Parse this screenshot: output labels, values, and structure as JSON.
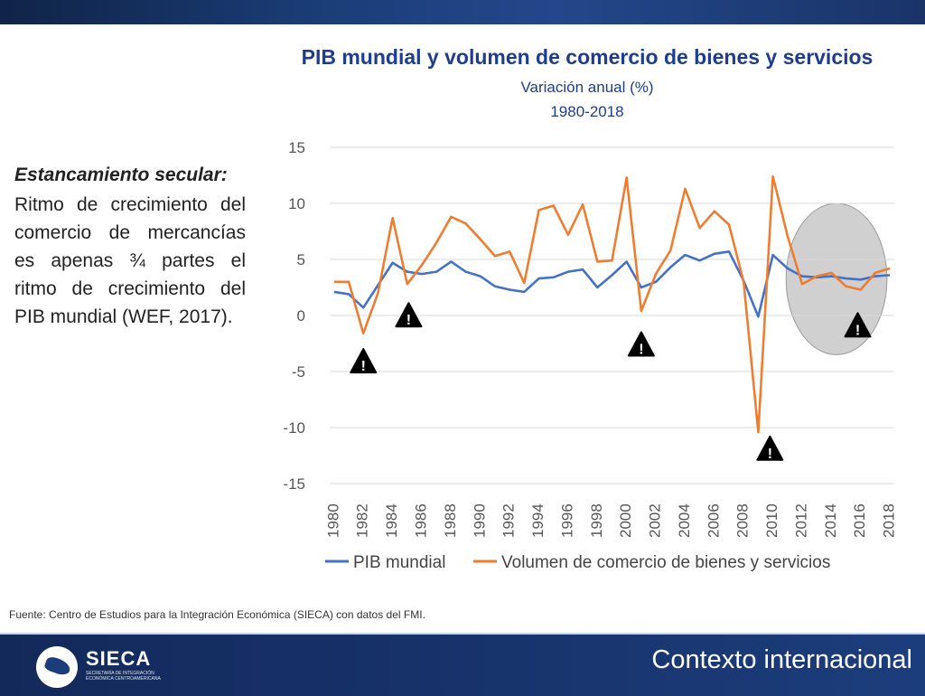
{
  "header": {
    "title": "PIB mundial y volumen de comercio de bienes y servicios",
    "subtitle": "Variación anual (%)",
    "years": "1980-2018"
  },
  "sidebar": {
    "heading": "Estancamiento secular:",
    "text": "Ritmo de crecimiento del comercio de mercancías es apenas ¾ partes el ritmo de crecimiento del PIB mundial (WEF, 2017)."
  },
  "source": "Fuente: Centro de Estudios para la Integración Económica (SIECA) con datos del FMI.",
  "footer": {
    "logo_name": "SIECA",
    "logo_sub": "SECRETARÍA DE INTEGRACIÓN ECONÓMICA CENTROAMERICANA",
    "title": "Contexto internacional"
  },
  "colors": {
    "gdp": "#4472c4",
    "trade": "#ed7d31",
    "title": "#1f3d8c"
  },
  "chart_data": {
    "type": "line",
    "title": "PIB mundial y volumen de comercio de bienes y servicios",
    "subtitle": "Variación anual (%) 1980-2018",
    "xlabel": "",
    "ylabel": "",
    "ylim": [
      -15,
      15
    ],
    "yticks": [
      "15",
      "10",
      "5",
      "0",
      "-5",
      "-10",
      "-15"
    ],
    "x": [
      1980,
      1981,
      1982,
      1983,
      1984,
      1985,
      1986,
      1987,
      1988,
      1989,
      1990,
      1991,
      1992,
      1993,
      1994,
      1995,
      1996,
      1997,
      1998,
      1999,
      2000,
      2001,
      2002,
      2003,
      2004,
      2005,
      2006,
      2007,
      2008,
      2009,
      2010,
      2011,
      2012,
      2013,
      2014,
      2015,
      2016,
      2017,
      2018
    ],
    "xtick_labels": [
      "1980",
      "1982",
      "1984",
      "1986",
      "1988",
      "1990",
      "1992",
      "1994",
      "1996",
      "1998",
      "2000",
      "2002",
      "2004",
      "2006",
      "2008",
      "2010",
      "2012",
      "2014",
      "2016",
      "2018"
    ],
    "legend_position": "bottom",
    "series": [
      {
        "name": "PIB mundial",
        "values": [
          2.1,
          1.9,
          0.7,
          2.7,
          4.7,
          3.9,
          3.7,
          3.9,
          4.8,
          3.9,
          3.5,
          2.6,
          2.3,
          2.1,
          3.3,
          3.4,
          3.9,
          4.1,
          2.5,
          3.6,
          4.8,
          2.5,
          3.0,
          4.3,
          5.4,
          4.9,
          5.5,
          5.7,
          3.1,
          -0.1,
          5.4,
          4.2,
          3.5,
          3.4,
          3.5,
          3.3,
          3.2,
          3.5,
          3.6
        ]
      },
      {
        "name": "Volumen de comercio de bienes y servicios",
        "values": [
          3.0,
          3.0,
          -1.6,
          2.0,
          8.7,
          2.8,
          4.5,
          6.5,
          8.8,
          8.2,
          6.8,
          5.3,
          5.7,
          2.9,
          9.4,
          9.8,
          7.2,
          9.9,
          4.8,
          4.9,
          12.3,
          0.4,
          3.7,
          5.8,
          11.3,
          7.8,
          9.3,
          8.1,
          3.0,
          -10.4,
          12.4,
          7.1,
          2.8,
          3.5,
          3.8,
          2.6,
          2.3,
          3.8,
          4.2
        ]
      }
    ],
    "warning_markers": [
      {
        "label": "⚠",
        "x": 1982.0,
        "y": -4.2
      },
      {
        "label": "⚠",
        "x": 1985.1,
        "y": -0.1
      },
      {
        "label": "⚠",
        "x": 2001.0,
        "y": -2.7
      },
      {
        "label": "⚠",
        "x": 2009.8,
        "y": -12.0
      },
      {
        "label": "⚠",
        "x": 2015.8,
        "y": -1.0
      }
    ],
    "highlight_region": {
      "x_from": 2010.9,
      "x_to": 2017.8,
      "y_from": -3.5,
      "y_to": 10.0
    }
  }
}
